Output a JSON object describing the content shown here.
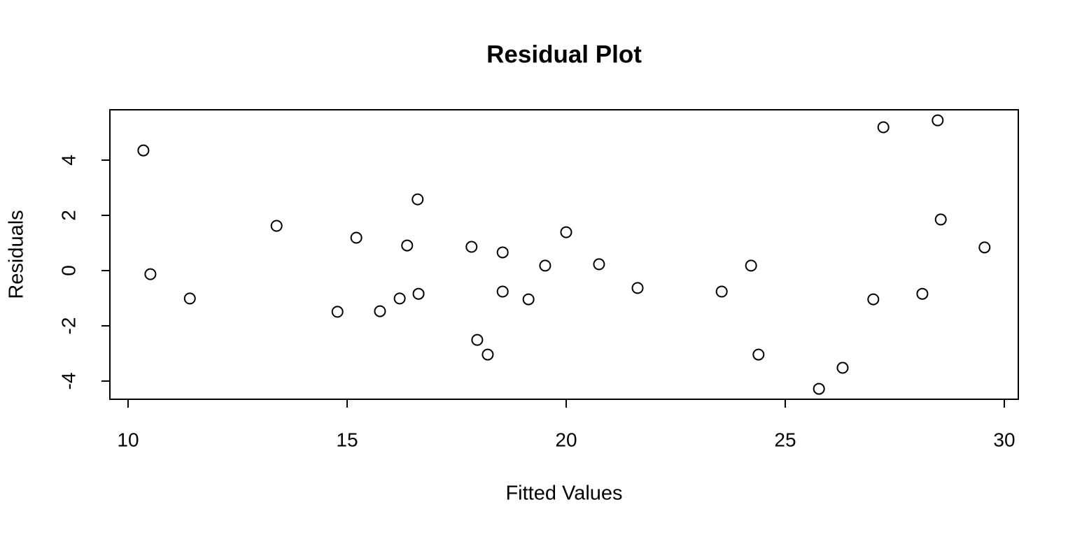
{
  "chart_data": {
    "type": "scatter",
    "title": "Residual Plot",
    "x_label": "Fitted Values",
    "y_label": "Residuals",
    "x": [
      10.35,
      10.51,
      11.41,
      13.39,
      14.78,
      15.21,
      15.75,
      16.2,
      16.37,
      16.61,
      16.63,
      17.84,
      17.97,
      18.21,
      18.55,
      18.55,
      19.14,
      19.52,
      20.0,
      20.75,
      21.63,
      23.55,
      24.22,
      24.39,
      25.77,
      26.31,
      27.01,
      27.24,
      28.13,
      28.48,
      28.55,
      29.55
    ],
    "values": [
      4.35,
      -0.13,
      -1.01,
      1.62,
      -1.49,
      1.19,
      -1.47,
      -1.01,
      0.91,
      2.58,
      -0.84,
      0.86,
      -2.51,
      -3.04,
      0.66,
      -0.76,
      -1.04,
      0.18,
      1.39,
      0.23,
      -0.63,
      -0.76,
      0.18,
      -3.04,
      -4.28,
      -3.52,
      -1.04,
      5.19,
      -0.84,
      5.44,
      1.85,
      0.84
    ],
    "color": "#000000",
    "xlim": [
      9.585,
      30.32
    ],
    "ylim": [
      -4.658,
      5.823
    ],
    "xticks": [
      10,
      15,
      20,
      25,
      30
    ],
    "yticks": [
      -4,
      -2,
      0,
      2,
      4
    ]
  }
}
